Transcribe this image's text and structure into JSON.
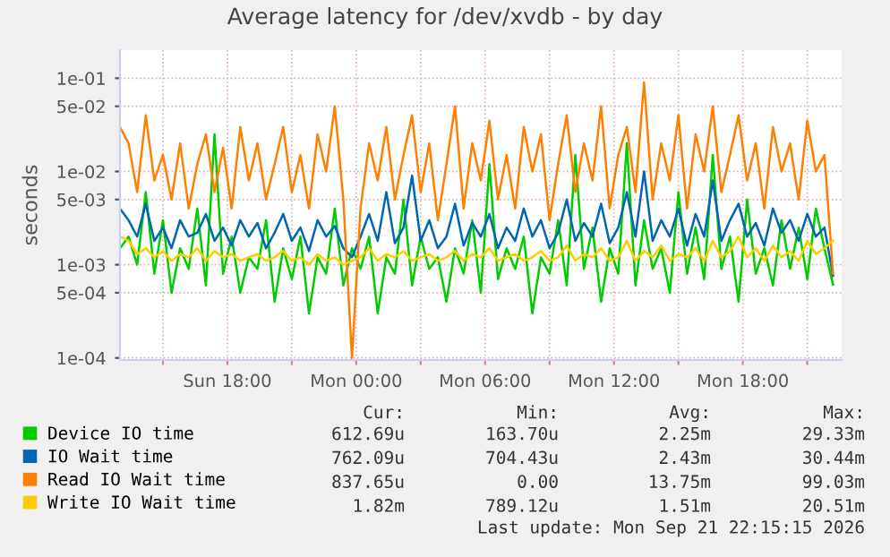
{
  "chart_data": {
    "type": "line",
    "title": "Average latency for /dev/xvdb - by day",
    "ylabel": "seconds",
    "log": true,
    "grid": true,
    "legend": "bottom",
    "marker": "none",
    "line_style": "solid",
    "xlim": [
      "2026-09-20T13:00",
      "2026-09-21T22:36"
    ],
    "ylim": [
      9.5e-05,
      0.2
    ],
    "xticks": [
      {
        "value": "2026-09-20T15:00",
        "label": null
      },
      {
        "value": "2026-09-20T18:00",
        "label": "Sun 18:00"
      },
      {
        "value": "2026-09-20T21:00",
        "label": null
      },
      {
        "value": "2026-09-21T00:00",
        "label": "Mon 00:00"
      },
      {
        "value": "2026-09-21T03:00",
        "label": null
      },
      {
        "value": "2026-09-21T06:00",
        "label": "Mon 06:00"
      },
      {
        "value": "2026-09-21T09:00",
        "label": null
      },
      {
        "value": "2026-09-21T12:00",
        "label": "Mon 12:00"
      },
      {
        "value": "2026-09-21T15:00",
        "label": null
      },
      {
        "value": "2026-09-21T18:00",
        "label": "Mon 18:00"
      },
      {
        "value": "2026-09-21T21:00",
        "label": null
      }
    ],
    "yticks": [
      {
        "value": 0.0001,
        "label": "1e-04"
      },
      {
        "value": 0.0005,
        "label": "5e-04"
      },
      {
        "value": 0.001,
        "label": "1e-03"
      },
      {
        "value": 0.005,
        "label": "5e-03"
      },
      {
        "value": 0.01,
        "label": "1e-02"
      },
      {
        "value": 0.05,
        "label": "5e-02"
      },
      {
        "value": 0.1,
        "label": "1e-01"
      }
    ],
    "x": [
      "2026-09-20T13:00",
      "2026-09-20T13:24",
      "2026-09-20T13:48",
      "2026-09-20T14:12",
      "2026-09-20T14:36",
      "2026-09-20T15:00",
      "2026-09-20T15:24",
      "2026-09-20T15:48",
      "2026-09-20T16:12",
      "2026-09-20T16:36",
      "2026-09-20T17:00",
      "2026-09-20T17:24",
      "2026-09-20T17:48",
      "2026-09-20T18:12",
      "2026-09-20T18:36",
      "2026-09-20T19:00",
      "2026-09-20T19:24",
      "2026-09-20T19:48",
      "2026-09-20T20:12",
      "2026-09-20T20:36",
      "2026-09-20T21:00",
      "2026-09-20T21:24",
      "2026-09-20T21:48",
      "2026-09-20T22:12",
      "2026-09-20T22:36",
      "2026-09-20T23:00",
      "2026-09-20T23:24",
      "2026-09-20T23:48",
      "2026-09-21T00:12",
      "2026-09-21T00:36",
      "2026-09-21T01:00",
      "2026-09-21T01:24",
      "2026-09-21T01:48",
      "2026-09-21T02:12",
      "2026-09-21T02:36",
      "2026-09-21T03:00",
      "2026-09-21T03:24",
      "2026-09-21T03:48",
      "2026-09-21T04:12",
      "2026-09-21T04:36",
      "2026-09-21T05:00",
      "2026-09-21T05:24",
      "2026-09-21T05:48",
      "2026-09-21T06:12",
      "2026-09-21T06:36",
      "2026-09-21T07:00",
      "2026-09-21T07:24",
      "2026-09-21T07:48",
      "2026-09-21T08:12",
      "2026-09-21T08:36",
      "2026-09-21T09:00",
      "2026-09-21T09:24",
      "2026-09-21T09:48",
      "2026-09-21T10:12",
      "2026-09-21T10:36",
      "2026-09-21T11:00",
      "2026-09-21T11:24",
      "2026-09-21T11:48",
      "2026-09-21T12:12",
      "2026-09-21T12:36",
      "2026-09-21T13:00",
      "2026-09-21T13:24",
      "2026-09-21T13:48",
      "2026-09-21T14:12",
      "2026-09-21T14:36",
      "2026-09-21T15:00",
      "2026-09-21T15:24",
      "2026-09-21T15:48",
      "2026-09-21T16:12",
      "2026-09-21T16:36",
      "2026-09-21T17:00",
      "2026-09-21T17:24",
      "2026-09-21T17:48",
      "2026-09-21T18:12",
      "2026-09-21T18:36",
      "2026-09-21T19:00",
      "2026-09-21T19:24",
      "2026-09-21T19:48",
      "2026-09-21T20:12",
      "2026-09-21T20:36",
      "2026-09-21T21:00",
      "2026-09-21T21:24",
      "2026-09-21T21:48",
      "2026-09-21T22:12"
    ],
    "series": [
      {
        "name": "Device IO time",
        "color": "#00cc00",
        "values": [
          0.0015,
          0.002,
          0.001,
          0.006,
          0.0008,
          0.003,
          0.0005,
          0.0015,
          0.0009,
          0.004,
          0.0006,
          0.025,
          0.0008,
          0.002,
          0.0005,
          0.0012,
          0.0009,
          0.003,
          0.0004,
          0.0015,
          0.0007,
          0.002,
          0.0003,
          0.0012,
          0.0008,
          0.004,
          0.0006,
          0.0015,
          0.0009,
          0.002,
          0.0003,
          0.0012,
          0.0008,
          0.005,
          0.0006,
          0.002,
          0.0009,
          0.0012,
          0.0004,
          0.0015,
          0.0008,
          0.003,
          0.0005,
          0.012,
          0.0007,
          0.0015,
          0.0009,
          0.002,
          0.0003,
          0.0012,
          0.0008,
          0.003,
          0.0006,
          0.015,
          0.0009,
          0.0025,
          0.0004,
          0.0015,
          0.0008,
          0.02,
          0.0006,
          0.003,
          0.0009,
          0.0015,
          0.0005,
          0.006,
          0.0008,
          0.0025,
          0.0007,
          0.015,
          0.0009,
          0.002,
          0.0004,
          0.005,
          0.0008,
          0.0015,
          0.0006,
          0.003,
          0.0009,
          0.0025,
          0.0007,
          0.004,
          0.0015,
          0.00061
        ]
      },
      {
        "name": "IO Wait time",
        "color": "#0066b3",
        "values": [
          0.004,
          0.003,
          0.002,
          0.0045,
          0.0018,
          0.0025,
          0.0015,
          0.003,
          0.002,
          0.0022,
          0.0035,
          0.0018,
          0.0025,
          0.0016,
          0.003,
          0.002,
          0.0028,
          0.0015,
          0.0022,
          0.0035,
          0.0018,
          0.0025,
          0.0014,
          0.003,
          0.002,
          0.0026,
          0.0015,
          0.0012,
          0.002,
          0.0035,
          0.0018,
          0.006,
          0.0017,
          0.0025,
          0.009,
          0.0018,
          0.003,
          0.0015,
          0.002,
          0.0045,
          0.0016,
          0.0028,
          0.002,
          0.0035,
          0.0015,
          0.0025,
          0.0018,
          0.004,
          0.002,
          0.003,
          0.0015,
          0.0022,
          0.005,
          0.0018,
          0.0028,
          0.002,
          0.0045,
          0.0017,
          0.0025,
          0.006,
          0.002,
          0.01,
          0.0018,
          0.003,
          0.002,
          0.004,
          0.0016,
          0.0035,
          0.002,
          0.008,
          0.0018,
          0.003,
          0.0045,
          0.002,
          0.0028,
          0.0016,
          0.004,
          0.0022,
          0.003,
          0.0018,
          0.0035,
          0.002,
          0.0025,
          0.00076
        ]
      },
      {
        "name": "Read IO Wait time",
        "color": "#ff8000",
        "values": [
          0.03,
          0.02,
          0.006,
          0.04,
          0.008,
          0.015,
          0.005,
          0.02,
          0.004,
          0.012,
          0.025,
          0.006,
          0.018,
          0.004,
          0.03,
          0.008,
          0.02,
          0.005,
          0.012,
          0.03,
          0.006,
          0.015,
          0.004,
          0.025,
          0.01,
          0.05,
          0.005,
          0.0001,
          0.004,
          0.02,
          0.008,
          0.03,
          0.005,
          0.015,
          0.04,
          0.006,
          0.02,
          0.003,
          0.012,
          0.05,
          0.004,
          0.02,
          0.008,
          0.035,
          0.005,
          0.015,
          0.004,
          0.03,
          0.01,
          0.025,
          0.003,
          0.012,
          0.04,
          0.006,
          0.02,
          0.008,
          0.05,
          0.004,
          0.015,
          0.03,
          0.006,
          0.09,
          0.005,
          0.02,
          0.008,
          0.04,
          0.004,
          0.025,
          0.01,
          0.05,
          0.006,
          0.015,
          0.04,
          0.008,
          0.02,
          0.004,
          0.03,
          0.01,
          0.02,
          0.005,
          0.035,
          0.01,
          0.015,
          0.0008
        ]
      },
      {
        "name": "Write IO Wait time",
        "color": "#ffcc00",
        "values": [
          0.002,
          0.0018,
          0.0013,
          0.0015,
          0.0012,
          0.0014,
          0.0011,
          0.0013,
          0.0012,
          0.0015,
          0.0011,
          0.0014,
          0.0012,
          0.0013,
          0.0011,
          0.0012,
          0.0013,
          0.0011,
          0.0012,
          0.0014,
          0.0011,
          0.0012,
          0.001,
          0.0013,
          0.0011,
          0.0012,
          0.001,
          0.0011,
          0.0012,
          0.0015,
          0.0011,
          0.0013,
          0.0012,
          0.0014,
          0.0011,
          0.0012,
          0.0013,
          0.0011,
          0.0012,
          0.0014,
          0.0011,
          0.0013,
          0.0012,
          0.0015,
          0.0011,
          0.0012,
          0.0013,
          0.0011,
          0.0012,
          0.0014,
          0.0011,
          0.0012,
          0.0016,
          0.0011,
          0.0013,
          0.0012,
          0.0015,
          0.0011,
          0.0012,
          0.0018,
          0.0011,
          0.0014,
          0.0012,
          0.0016,
          0.0011,
          0.0013,
          0.0012,
          0.0015,
          0.0011,
          0.0018,
          0.0012,
          0.0014,
          0.002,
          0.0012,
          0.0015,
          0.0011,
          0.0016,
          0.0012,
          0.0014,
          0.0011,
          0.0018,
          0.0013,
          0.0015,
          0.00182
        ]
      }
    ],
    "annotations": [
      "Cur:",
      "Min:",
      "Avg:",
      "Max:",
      "612.69u",
      "163.70u",
      "2.25m",
      "29.33m",
      "762.09u",
      "704.43u",
      "2.43m",
      "30.44m",
      "837.65u",
      "0.00",
      "13.75m",
      "99.03m",
      "1.82m",
      "789.12u",
      "1.51m",
      "20.51m",
      "Last update: Mon Sep 21 22:15:15 2026"
    ]
  }
}
